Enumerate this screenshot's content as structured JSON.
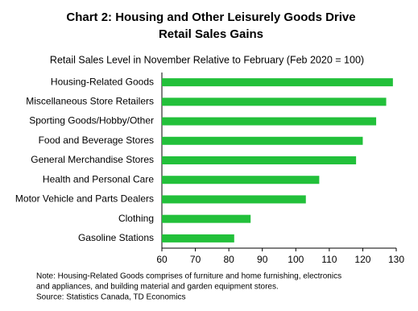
{
  "chart_data": {
    "type": "bar",
    "orientation": "horizontal",
    "title": [
      "Chart 2: Housing and Other Leisurely Goods Drive",
      "Retail Sales Gains"
    ],
    "subtitle": "Retail Sales Level in November Relative to February (Feb 2020 = 100)",
    "categories": [
      "Housing-Related Goods",
      "Miscellaneous Store Retailers",
      "Sporting Goods/Hobby/Other",
      "Food and Beverage Stores",
      "General Merchandise Stores",
      "Health and Personal Care",
      "Motor Vehicle and Parts Dealers",
      "Clothing",
      "Gasoline Stations"
    ],
    "values": [
      129,
      127,
      124,
      120,
      118,
      107,
      103,
      86.5,
      81.6
    ],
    "color": "#22c03a",
    "xlim": [
      60,
      130
    ],
    "xticks": [
      60,
      70,
      80,
      90,
      100,
      110,
      120,
      130
    ],
    "grid": false,
    "notes": [
      "Note: Housing-Related  Goods comprises of furniture and home furnishing, electronics",
      "and appliances, and building material and garden equipment  stores.",
      "Source: Statistics Canada, TD Economics"
    ]
  }
}
